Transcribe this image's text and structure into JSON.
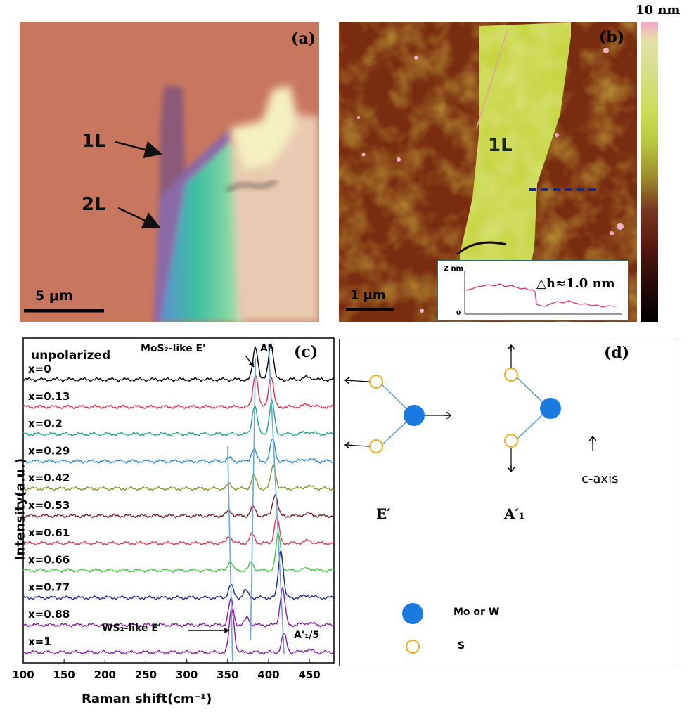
{
  "panel_a": {
    "label": "(a)",
    "arrow_1L": "1L",
    "arrow_2L": "2L",
    "scale_bar": "5 μm"
  },
  "panel_b": {
    "label": "(b)",
    "flake_label": "1L",
    "scale_bar": "1 μm",
    "colorbar_max": "10 nm",
    "inset": {
      "y_top": "2 nm",
      "y_bottom": "0",
      "delta_h": "△h≈1.0 nm"
    }
  },
  "panel_c": {
    "label": "(c)",
    "legend": "unpolarized",
    "ylabel": "Intensity(a.u.)",
    "xlabel": "Raman shift(cm⁻¹)",
    "annotations": {
      "mos2_like": "MoS₂-like E'",
      "ws2_like": "WS₂-like E'",
      "a1_top": "A'₁",
      "a1_bottom": "A'₁/5"
    }
  },
  "panel_d": {
    "label": "(d)",
    "mode_e": "E′",
    "mode_a": "A′₁",
    "axis": "c-axis",
    "legend_metal": "Mo or W",
    "legend_s": "S"
  },
  "chart_data": {
    "type": "line",
    "xlabel": "Raman shift(cm⁻¹)",
    "ylabel": "Intensity(a.u.)",
    "xlim": [
      100,
      480
    ],
    "x_ticks": [
      100,
      150,
      200,
      250,
      300,
      350,
      400,
      450
    ],
    "series": [
      {
        "name": "x=0",
        "color": "#000000",
        "peaks": [
          [
            384,
            0.9
          ],
          [
            403,
            1.0
          ]
        ]
      },
      {
        "name": "x=0.13",
        "color": "#e8324c",
        "peaks": [
          [
            384,
            0.9
          ],
          [
            403,
            0.85
          ]
        ]
      },
      {
        "name": "x=0.2",
        "color": "#1aa58a",
        "peaks": [
          [
            383,
            0.8
          ],
          [
            404,
            0.9
          ]
        ]
      },
      {
        "name": "x=0.29",
        "color": "#2a8ad6",
        "peaks": [
          [
            352,
            0.1
          ],
          [
            382,
            0.35
          ],
          [
            405,
            0.6
          ]
        ]
      },
      {
        "name": "x=0.42",
        "color": "#8f8f2c",
        "peaks": [
          [
            352,
            0.12
          ],
          [
            382,
            0.35
          ],
          [
            406,
            0.65
          ]
        ]
      },
      {
        "name": "x=0.53",
        "color": "#7a1a20",
        "peaks": [
          [
            352,
            0.15
          ],
          [
            381,
            0.25
          ],
          [
            408,
            0.6
          ]
        ]
      },
      {
        "name": "x=0.61",
        "color": "#e8324c",
        "peaks": [
          [
            352,
            0.2
          ],
          [
            380,
            0.25
          ],
          [
            410,
            0.7
          ]
        ]
      },
      {
        "name": "x=0.66",
        "color": "#3cc43c",
        "peaks": [
          [
            353,
            0.25
          ],
          [
            379,
            0.2
          ],
          [
            412,
            1.0
          ]
        ]
      },
      {
        "name": "x=0.77",
        "color": "#1a2a8a",
        "peaks": [
          [
            354,
            0.35
          ],
          [
            372,
            0.2
          ],
          [
            415,
            1.3
          ]
        ]
      },
      {
        "name": "x=0.88",
        "color": "#8a1aa5",
        "peaks": [
          [
            354,
            0.7
          ],
          [
            374,
            0.2
          ],
          [
            417,
            1.0
          ]
        ]
      },
      {
        "name": "x=1",
        "color": "#8a1aa5",
        "peaks": [
          [
            355,
            1.2
          ],
          [
            419,
            0.5
          ]
        ]
      }
    ]
  }
}
